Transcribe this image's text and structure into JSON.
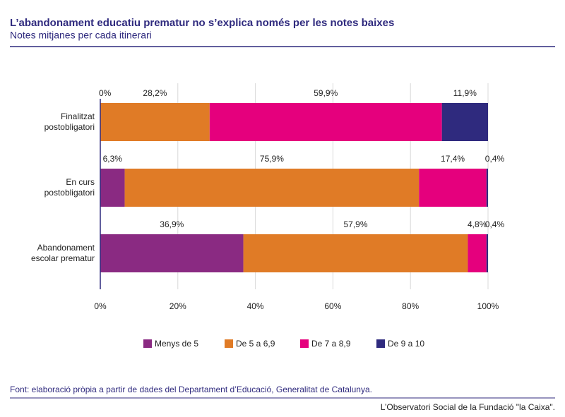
{
  "chart_data": {
    "type": "stacked-bar-horizontal",
    "title": "L’abandonament educatiu prematur no s’explica només per les notes baixes",
    "subtitle": "Notes mitjanes per cada itinerari",
    "source": "Font: elaboració pròpia a partir de dades del Departament d’Educació, Generalitat de Catalunya.",
    "credit": "L’Observatori Social de la Fundació \"la Caixa\".",
    "categories": [
      "Finalitzat postobligatori",
      "En curs postobligatori",
      "Abandonament escolar prematur"
    ],
    "series": [
      {
        "name": "Menys de 5",
        "color": "#8a2a82",
        "values": [
          0,
          6.3,
          36.9
        ],
        "value_labels": [
          "0%",
          "6,3%",
          "36,9%"
        ]
      },
      {
        "name": "De 5 a 6,9",
        "color": "#e07b26",
        "values": [
          28.2,
          75.9,
          57.9
        ],
        "value_labels": [
          "28,2%",
          "75,9%",
          "57,9%"
        ]
      },
      {
        "name": "De 7 a 8,9",
        "color": "#e5007d",
        "values": [
          59.9,
          17.4,
          4.8
        ],
        "value_labels": [
          "59,9%",
          "17,4%",
          "4,8%"
        ]
      },
      {
        "name": "De 9 a 10",
        "color": "#2f2a7e",
        "values": [
          11.9,
          0.4,
          0.4
        ],
        "value_labels": [
          "11,9%",
          "0,4%",
          "0,4%"
        ]
      }
    ],
    "xlim": [
      0,
      100
    ],
    "xticks": [
      {
        "value": 0,
        "label": "0%"
      },
      {
        "value": 20,
        "label": "20%"
      },
      {
        "value": 40,
        "label": "40%"
      },
      {
        "value": 60,
        "label": "60%"
      },
      {
        "value": 80,
        "label": "80%"
      },
      {
        "value": 100,
        "label": "100%"
      }
    ],
    "grid": true
  }
}
